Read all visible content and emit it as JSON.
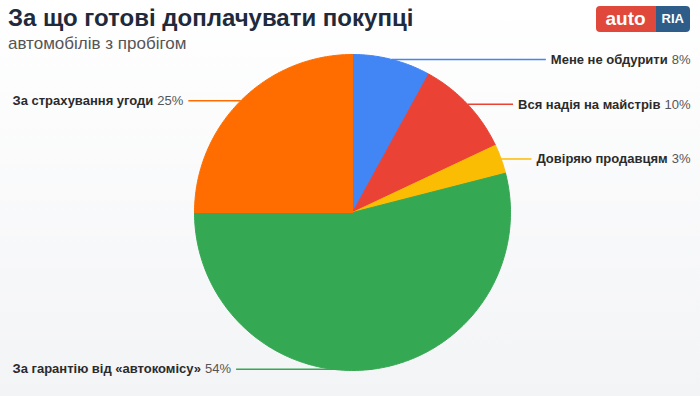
{
  "chart_data": {
    "type": "pie",
    "title": "За що готові доплачувати покупці",
    "subtitle": "автомобілів з пробігом",
    "annotations": [
      "auto",
      "RIA"
    ],
    "categories": [
      "Мене не обдурити",
      "Вся надія на майстрів",
      "Довіряю продавцям",
      "За гарантію від «автокомісу»",
      "За страхування угоди"
    ],
    "values": [
      8,
      10,
      3,
      54,
      25
    ],
    "value_labels": [
      "8%",
      "10%",
      "3%",
      "54%",
      "25%"
    ],
    "colors": [
      "#4285f4",
      "#ea4335",
      "#fbbc04",
      "#34a853",
      "#ff6d01"
    ],
    "data_labels": true
  }
}
